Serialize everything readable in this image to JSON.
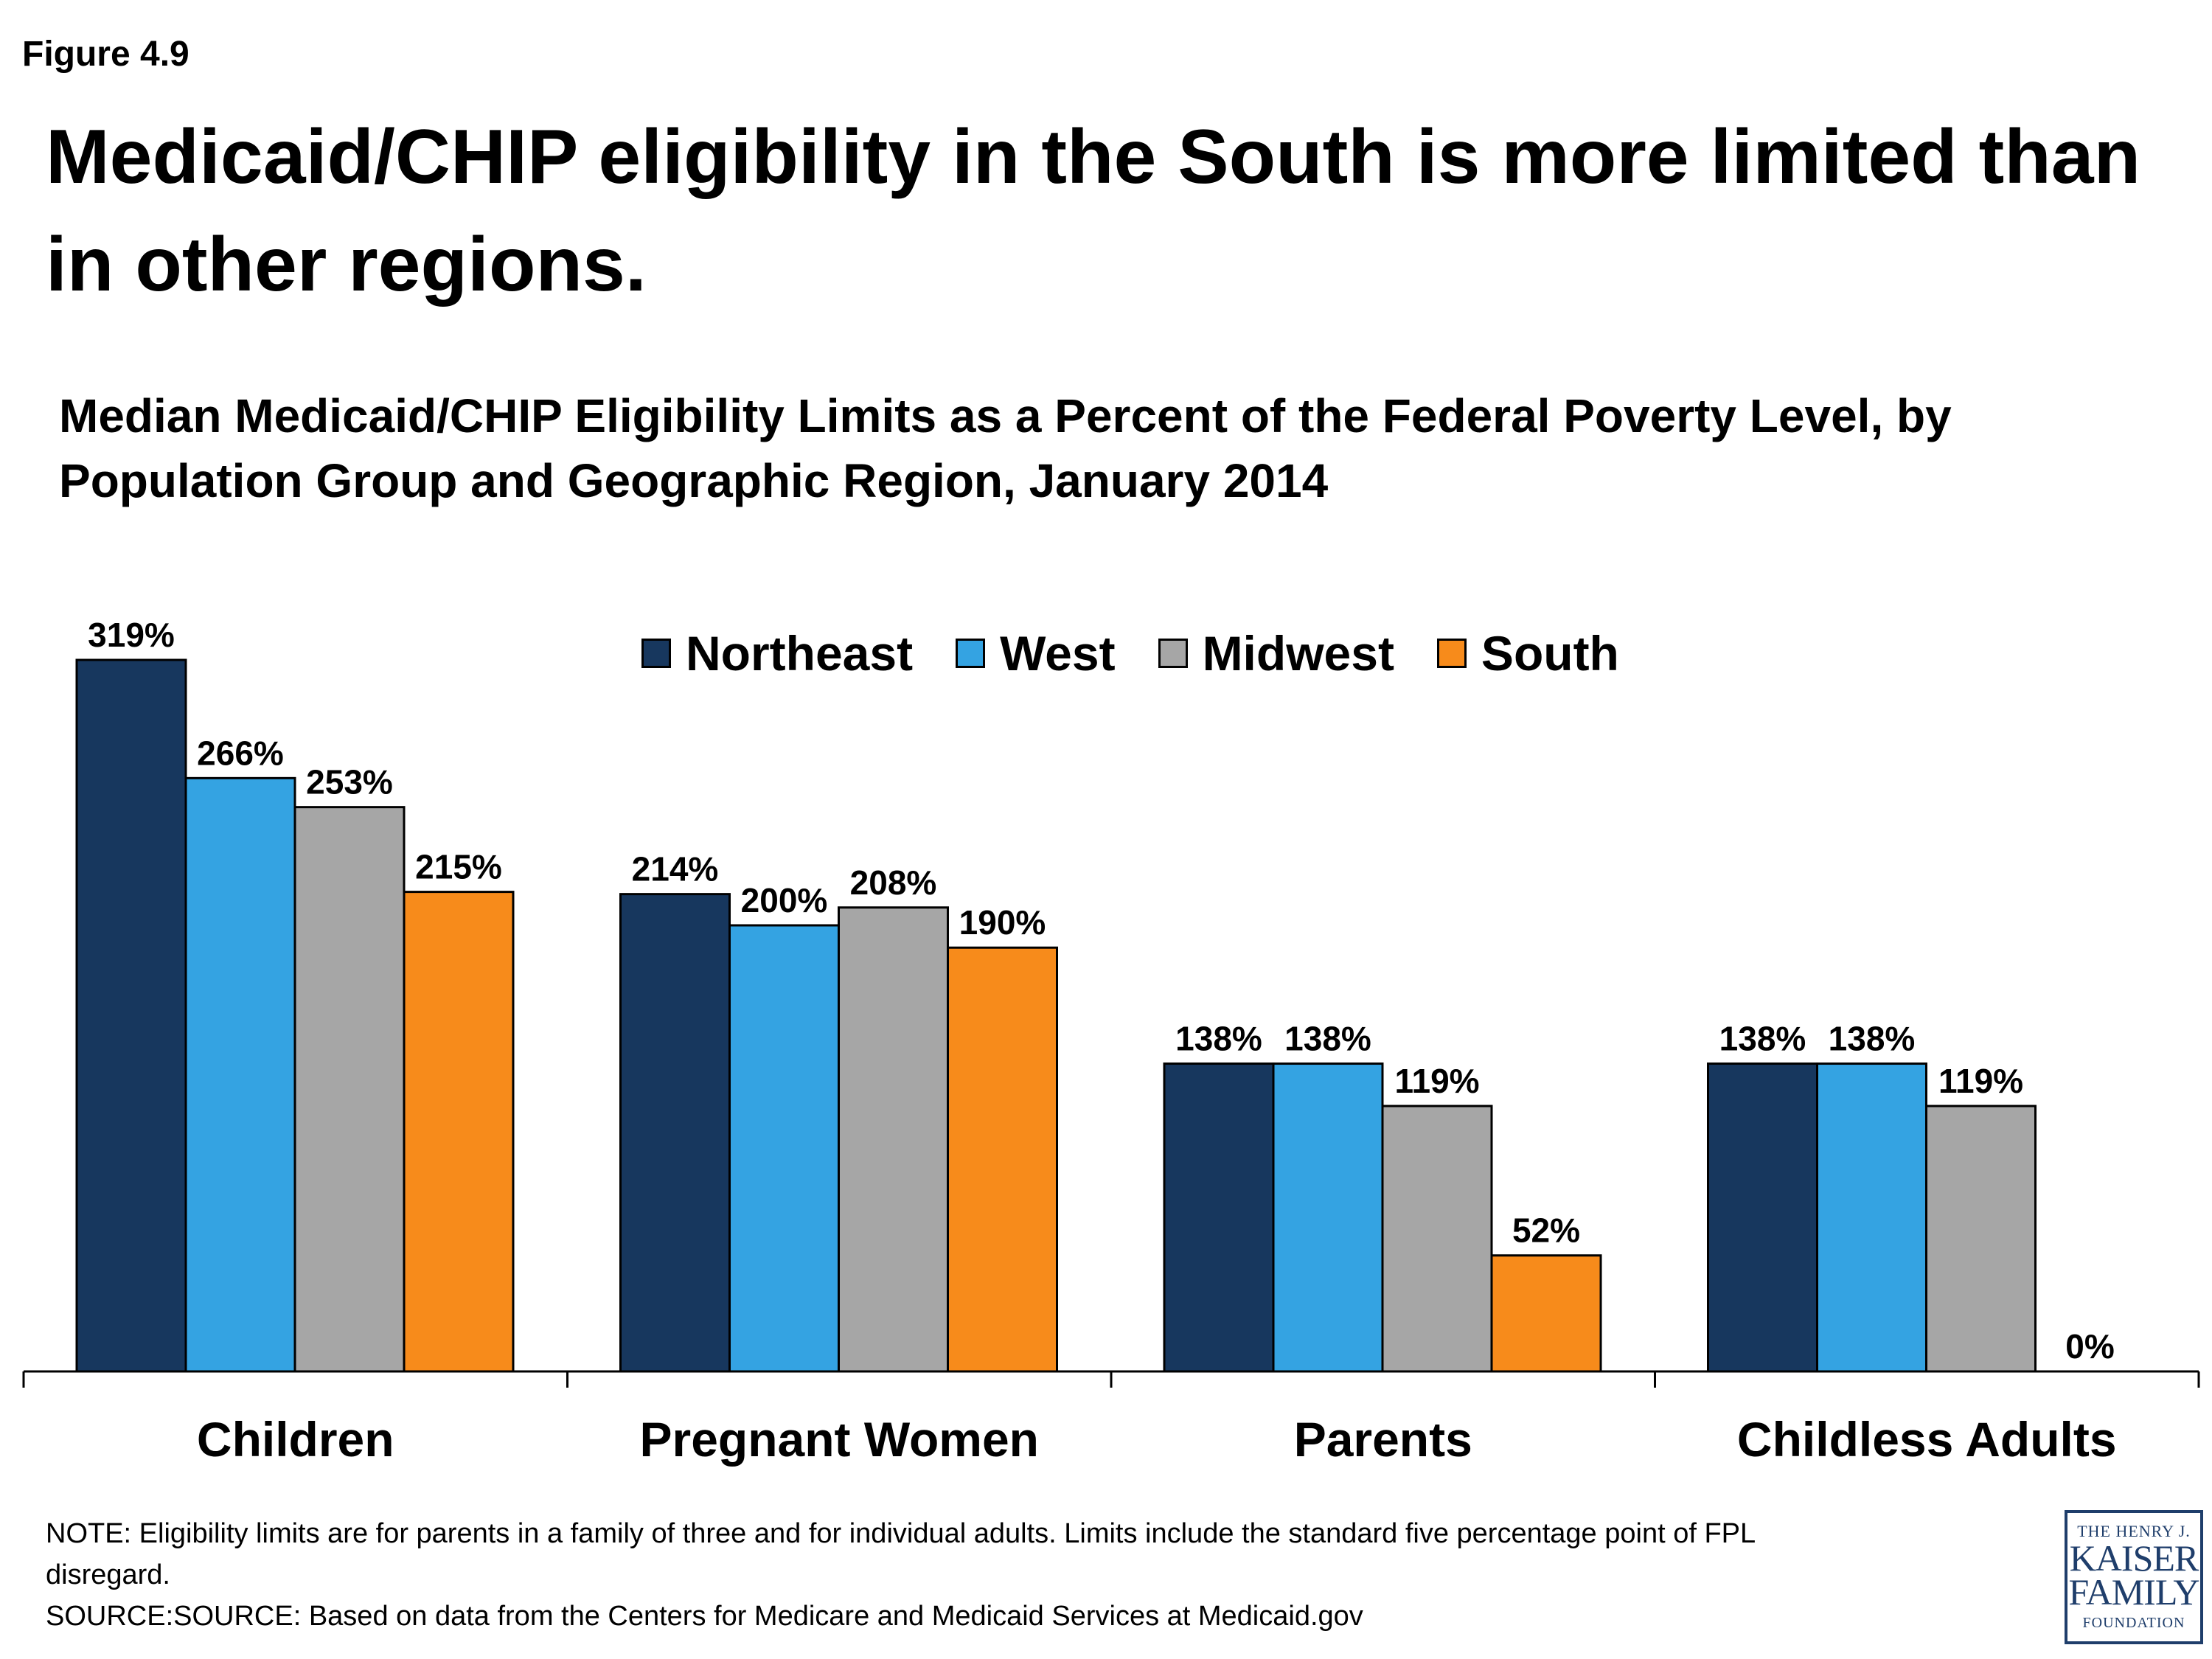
{
  "figure_label": "Figure 4.9",
  "headline": "Medicaid/CHIP eligibility in the South is more limited than in other regions.",
  "note": "NOTE: Eligibility limits are for parents in a family of three and for individual adults. Limits include the standard five percentage point of FPL",
  "note_cont": "disregard.",
  "source": "SOURCE:SOURCE: Based on data from the Centers for Medicare and Medicaid Services at Medicaid.gov",
  "logo": {
    "line1": "THE HENRY J.",
    "line2": "KAISER",
    "line3": "FAMILY",
    "line4": "FOUNDATION"
  },
  "colors": {
    "Northeast": "#17375e",
    "West": "#34a3e2",
    "Midwest": "#a6a6a6",
    "South": "#f78b1b"
  },
  "chart_data": {
    "type": "bar",
    "title": "Median Medicaid/CHIP Eligibility Limits as a Percent of the Federal Poverty Level, by Population Group and Geographic Region, January 2014",
    "categories": [
      "Children",
      "Pregnant Women",
      "Parents",
      "Childless Adults"
    ],
    "series": [
      {
        "name": "Northeast",
        "values": [
          319,
          214,
          138,
          138
        ],
        "labels": [
          "319%",
          "214%",
          "138%",
          "138%"
        ]
      },
      {
        "name": "West",
        "values": [
          266,
          200,
          138,
          138
        ],
        "labels": [
          "266%",
          "200%",
          "138%",
          "138%"
        ]
      },
      {
        "name": "Midwest",
        "values": [
          253,
          208,
          119,
          119
        ],
        "labels": [
          "253%",
          "208%",
          "119%",
          "119%"
        ]
      },
      {
        "name": "South",
        "values": [
          215,
          190,
          52,
          0
        ],
        "labels": [
          "215%",
          "190%",
          "52%",
          "0%"
        ]
      }
    ],
    "xlabel": "",
    "ylabel": "",
    "ylim": [
      0,
      319
    ],
    "grid": false,
    "legend_position": "top-center",
    "data_labels": true
  }
}
